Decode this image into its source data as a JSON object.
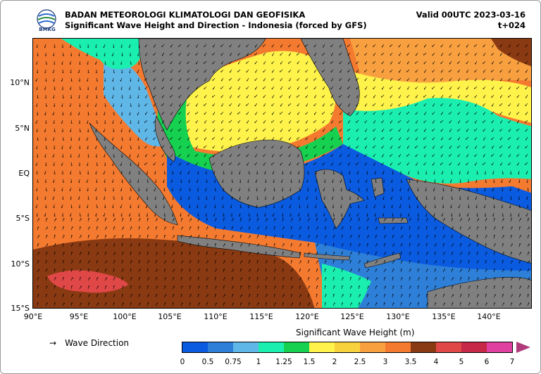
{
  "header": {
    "org": "BADAN METEOROLOGI KLIMATOLOGI DAN GEOFISIKA",
    "subtitle": "Significant Wave Height and Direction - Indonesia (forced by GFS)",
    "valid": "Valid 00UTC 2023-03-16",
    "lead": "t+024",
    "logo_text": "BMKG"
  },
  "axes": {
    "lat_ticks": [
      "10°N",
      "5°N",
      "EQ",
      "5°S",
      "10°S",
      "15°S"
    ],
    "lon_ticks": [
      "90°E",
      "95°E",
      "100°E",
      "105°E",
      "110°E",
      "115°E",
      "120°E",
      "125°E",
      "130°E",
      "135°E",
      "140°E"
    ]
  },
  "legend": {
    "direction_label": "Wave Direction",
    "arrow_glyph": "→"
  },
  "colorbar": {
    "title": "Significant Wave Height (m)",
    "tick_labels": [
      "0",
      "0.5",
      "0.75",
      "1",
      "1.25",
      "1.5",
      "2",
      "2.5",
      "3",
      "3.5",
      "4",
      "5",
      "6",
      "7"
    ],
    "colors": [
      "#0a5be0",
      "#2e7fd8",
      "#5fb7e8",
      "#1aefb0",
      "#16d050",
      "#fff24a",
      "#f8d23c",
      "#f8a040",
      "#f47a30",
      "#8a3a12",
      "#e04848",
      "#c82848",
      "#e040a0",
      "#b03a7a"
    ]
  },
  "colors": {
    "land": "#808080",
    "deep_blue": "#0a5be0",
    "orange": "#f47a30",
    "brown": "#8a3a12",
    "yellow": "#fff24a",
    "green_light": "#1aefb0",
    "green": "#16d050",
    "red": "#e04848"
  }
}
